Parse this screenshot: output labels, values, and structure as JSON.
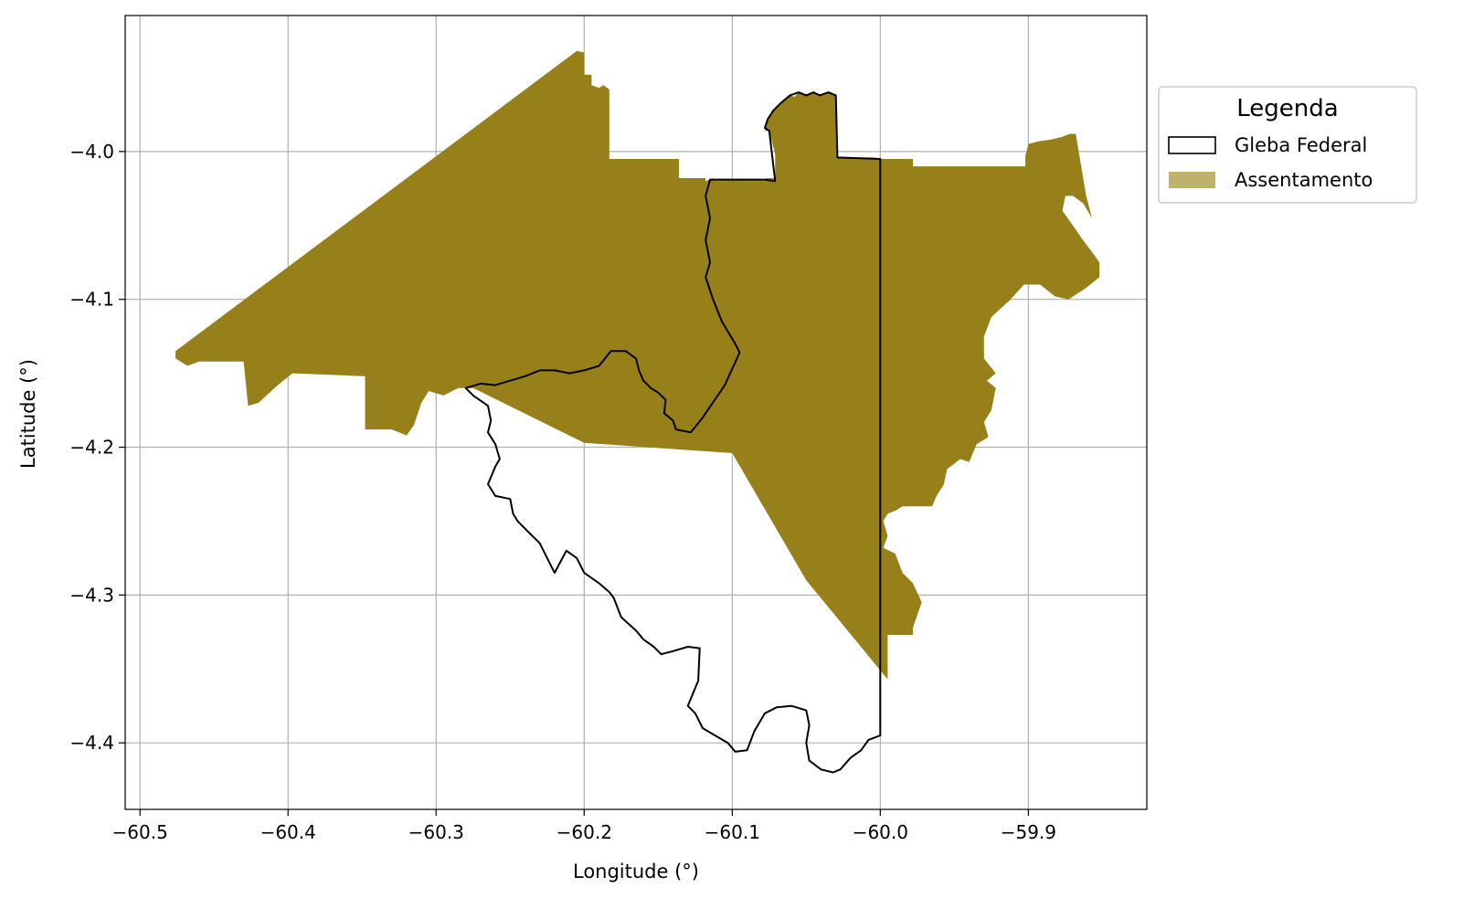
{
  "chart_data": {
    "type": "map",
    "xlabel": "Longitude (°)",
    "ylabel": "Latitude (°)",
    "xlim": [
      -60.51,
      -59.82
    ],
    "ylim": [
      -4.445,
      -3.908
    ],
    "xticks": [
      -60.5,
      -60.4,
      -60.3,
      -60.2,
      -60.1,
      -60.0,
      -59.9
    ],
    "xtick_labels": [
      "−60.5",
      "−60.4",
      "−60.3",
      "−60.2",
      "−60.1",
      "−60.0",
      "−59.9"
    ],
    "yticks": [
      -4.0,
      -4.1,
      -4.2,
      -4.3,
      -4.4
    ],
    "ytick_labels": [
      "−4.0",
      "−4.1",
      "−4.2",
      "−4.3",
      "−4.4"
    ],
    "grid": true,
    "legend": {
      "title": "Legenda",
      "placement": "outside-right-top",
      "entries": [
        {
          "label": "Gleba Federal",
          "style": "outline",
          "color": "#000000"
        },
        {
          "label": "Assentamento",
          "style": "fill",
          "color": "#BFB26E"
        }
      ]
    },
    "layers": [
      {
        "name": "Assentamento",
        "fill": "#978019",
        "polygon": [
          [
            -60.476,
            -4.135
          ],
          [
            -60.205,
            -3.932
          ],
          [
            -60.2,
            -3.933
          ],
          [
            -60.2,
            -3.948
          ],
          [
            -60.195,
            -3.948
          ],
          [
            -60.195,
            -3.955
          ],
          [
            -60.19,
            -3.957
          ],
          [
            -60.187,
            -3.955
          ],
          [
            -60.183,
            -3.958
          ],
          [
            -60.183,
            -4.005
          ],
          [
            -60.136,
            -4.005
          ],
          [
            -60.136,
            -4.018
          ],
          [
            -60.118,
            -4.018
          ],
          [
            -60.118,
            -4.02
          ],
          [
            -60.113,
            -4.018
          ],
          [
            -60.113,
            -4.019
          ],
          [
            -60.078,
            -4.019
          ],
          [
            -60.077,
            -4.018
          ],
          [
            -60.071,
            -4.018
          ],
          [
            -60.071,
            -4.002
          ],
          [
            -60.075,
            -3.986
          ],
          [
            -60.078,
            -3.986
          ],
          [
            -60.077,
            -3.98
          ],
          [
            -60.073,
            -3.972
          ],
          [
            -60.067,
            -3.967
          ],
          [
            -60.061,
            -3.962
          ],
          [
            -60.058,
            -3.963
          ],
          [
            -60.055,
            -3.96
          ],
          [
            -60.05,
            -3.962
          ],
          [
            -60.045,
            -3.96
          ],
          [
            -60.041,
            -3.962
          ],
          [
            -60.035,
            -3.96
          ],
          [
            -60.03,
            -3.962
          ],
          [
            -60.029,
            -4.004
          ],
          [
            -60.005,
            -4.004
          ],
          [
            -60.0,
            -4.005
          ],
          [
            -59.978,
            -4.005
          ],
          [
            -59.978,
            -4.01
          ],
          [
            -59.902,
            -4.01
          ],
          [
            -59.902,
            -4.003
          ],
          [
            -59.9,
            -3.995
          ],
          [
            -59.893,
            -3.993
          ],
          [
            -59.885,
            -3.992
          ],
          [
            -59.877,
            -3.99
          ],
          [
            -59.872,
            -3.988
          ],
          [
            -59.868,
            -3.988
          ],
          [
            -59.861,
            -4.03
          ],
          [
            -59.857,
            -4.045
          ],
          [
            -59.863,
            -4.035
          ],
          [
            -59.87,
            -4.03
          ],
          [
            -59.875,
            -4.03
          ],
          [
            -59.877,
            -4.04
          ],
          [
            -59.87,
            -4.05
          ],
          [
            -59.863,
            -4.06
          ],
          [
            -59.857,
            -4.068
          ],
          [
            -59.852,
            -4.075
          ],
          [
            -59.852,
            -4.085
          ],
          [
            -59.862,
            -4.093
          ],
          [
            -59.873,
            -4.1
          ],
          [
            -59.882,
            -4.098
          ],
          [
            -59.892,
            -4.09
          ],
          [
            -59.903,
            -4.09
          ],
          [
            -59.912,
            -4.1
          ],
          [
            -59.925,
            -4.112
          ],
          [
            -59.93,
            -4.125
          ],
          [
            -59.93,
            -4.14
          ],
          [
            -59.922,
            -4.15
          ],
          [
            -59.928,
            -4.155
          ],
          [
            -59.922,
            -4.16
          ],
          [
            -59.925,
            -4.175
          ],
          [
            -59.93,
            -4.183
          ],
          [
            -59.927,
            -4.193
          ],
          [
            -59.935,
            -4.198
          ],
          [
            -59.94,
            -4.21
          ],
          [
            -59.946,
            -4.208
          ],
          [
            -59.955,
            -4.215
          ],
          [
            -59.957,
            -4.225
          ],
          [
            -59.962,
            -4.233
          ],
          [
            -59.965,
            -4.24
          ],
          [
            -59.985,
            -4.24
          ],
          [
            -59.99,
            -4.243
          ],
          [
            -59.995,
            -4.245
          ],
          [
            -59.998,
            -4.25
          ],
          [
            -59.995,
            -4.26
          ],
          [
            -59.998,
            -4.268
          ],
          [
            -59.99,
            -4.272
          ],
          [
            -59.985,
            -4.285
          ],
          [
            -59.978,
            -4.292
          ],
          [
            -59.972,
            -4.305
          ],
          [
            -59.978,
            -4.322
          ],
          [
            -59.978,
            -4.327
          ],
          [
            -59.995,
            -4.327
          ],
          [
            -59.995,
            -4.357
          ],
          [
            -60.05,
            -4.29
          ],
          [
            -60.1,
            -4.204
          ],
          [
            -60.2,
            -4.197
          ],
          [
            -60.275,
            -4.16
          ],
          [
            -60.285,
            -4.16
          ],
          [
            -60.295,
            -4.165
          ],
          [
            -60.305,
            -4.162
          ],
          [
            -60.31,
            -4.17
          ],
          [
            -60.315,
            -4.185
          ],
          [
            -60.32,
            -4.192
          ],
          [
            -60.33,
            -4.188
          ],
          [
            -60.348,
            -4.188
          ],
          [
            -60.348,
            -4.152
          ],
          [
            -60.397,
            -4.15
          ],
          [
            -60.407,
            -4.158
          ],
          [
            -60.42,
            -4.17
          ],
          [
            -60.427,
            -4.172
          ],
          [
            -60.43,
            -4.142
          ],
          [
            -60.46,
            -4.142
          ],
          [
            -60.468,
            -4.145
          ],
          [
            -60.476,
            -4.14
          ]
        ]
      },
      {
        "name": "Gleba Federal",
        "stroke": "#000000",
        "polygon": [
          [
            -60.113,
            -4.019
          ],
          [
            -60.078,
            -4.019
          ],
          [
            -60.071,
            -4.02
          ],
          [
            -60.075,
            -3.986
          ],
          [
            -60.078,
            -3.984
          ],
          [
            -60.076,
            -3.978
          ],
          [
            -60.072,
            -3.972
          ],
          [
            -60.067,
            -3.967
          ],
          [
            -60.061,
            -3.962
          ],
          [
            -60.055,
            -3.96
          ],
          [
            -60.05,
            -3.962
          ],
          [
            -60.045,
            -3.96
          ],
          [
            -60.041,
            -3.962
          ],
          [
            -60.035,
            -3.96
          ],
          [
            -60.03,
            -3.962
          ],
          [
            -60.029,
            -4.004
          ],
          [
            -60.0,
            -4.005
          ],
          [
            -60.0,
            -4.395
          ],
          [
            -60.008,
            -4.398
          ],
          [
            -60.013,
            -4.405
          ],
          [
            -60.02,
            -4.41
          ],
          [
            -60.027,
            -4.418
          ],
          [
            -60.032,
            -4.42
          ],
          [
            -60.04,
            -4.418
          ],
          [
            -60.048,
            -4.412
          ],
          [
            -60.05,
            -4.4
          ],
          [
            -60.048,
            -4.388
          ],
          [
            -60.05,
            -4.378
          ],
          [
            -60.06,
            -4.375
          ],
          [
            -60.07,
            -4.376
          ],
          [
            -60.078,
            -4.38
          ],
          [
            -60.085,
            -4.392
          ],
          [
            -60.09,
            -4.405
          ],
          [
            -60.098,
            -4.406
          ],
          [
            -60.103,
            -4.4
          ],
          [
            -60.115,
            -4.393
          ],
          [
            -60.12,
            -4.39
          ],
          [
            -60.125,
            -4.38
          ],
          [
            -60.13,
            -4.375
          ],
          [
            -60.123,
            -4.358
          ],
          [
            -60.122,
            -4.336
          ],
          [
            -60.13,
            -4.335
          ],
          [
            -60.14,
            -4.338
          ],
          [
            -60.148,
            -4.34
          ],
          [
            -60.153,
            -4.335
          ],
          [
            -60.16,
            -4.33
          ],
          [
            -60.165,
            -4.324
          ],
          [
            -60.175,
            -4.315
          ],
          [
            -60.18,
            -4.302
          ],
          [
            -60.183,
            -4.298
          ],
          [
            -60.19,
            -4.292
          ],
          [
            -60.2,
            -4.285
          ],
          [
            -60.205,
            -4.275
          ],
          [
            -60.212,
            -4.27
          ],
          [
            -60.22,
            -4.285
          ],
          [
            -60.225,
            -4.275
          ],
          [
            -60.23,
            -4.265
          ],
          [
            -60.237,
            -4.258
          ],
          [
            -60.245,
            -4.25
          ],
          [
            -60.248,
            -4.245
          ],
          [
            -60.25,
            -4.235
          ],
          [
            -60.26,
            -4.233
          ],
          [
            -60.265,
            -4.225
          ],
          [
            -60.26,
            -4.213
          ],
          [
            -60.257,
            -4.208
          ],
          [
            -60.26,
            -4.198
          ],
          [
            -60.265,
            -4.19
          ],
          [
            -60.263,
            -4.182
          ],
          [
            -60.265,
            -4.172
          ],
          [
            -60.275,
            -4.165
          ],
          [
            -60.28,
            -4.16
          ],
          [
            -60.27,
            -4.157
          ],
          [
            -60.26,
            -4.158
          ],
          [
            -60.25,
            -4.155
          ],
          [
            -60.24,
            -4.152
          ],
          [
            -60.23,
            -4.148
          ],
          [
            -60.22,
            -4.148
          ],
          [
            -60.21,
            -4.15
          ],
          [
            -60.2,
            -4.148
          ],
          [
            -60.19,
            -4.145
          ],
          [
            -60.182,
            -4.135
          ],
          [
            -60.172,
            -4.135
          ],
          [
            -60.165,
            -4.14
          ],
          [
            -60.163,
            -4.148
          ],
          [
            -60.16,
            -4.155
          ],
          [
            -60.155,
            -4.16
          ],
          [
            -60.15,
            -4.163
          ],
          [
            -60.145,
            -4.168
          ],
          [
            -60.146,
            -4.177
          ],
          [
            -60.14,
            -4.182
          ],
          [
            -60.138,
            -4.188
          ],
          [
            -60.128,
            -4.19
          ],
          [
            -60.12,
            -4.18
          ],
          [
            -60.105,
            -4.158
          ],
          [
            -60.095,
            -4.136
          ],
          [
            -60.098,
            -4.13
          ],
          [
            -60.107,
            -4.115
          ],
          [
            -60.113,
            -4.1
          ],
          [
            -60.118,
            -4.085
          ],
          [
            -60.115,
            -4.075
          ],
          [
            -60.118,
            -4.06
          ],
          [
            -60.115,
            -4.045
          ],
          [
            -60.118,
            -4.03
          ],
          [
            -60.115,
            -4.019
          ]
        ]
      }
    ]
  }
}
